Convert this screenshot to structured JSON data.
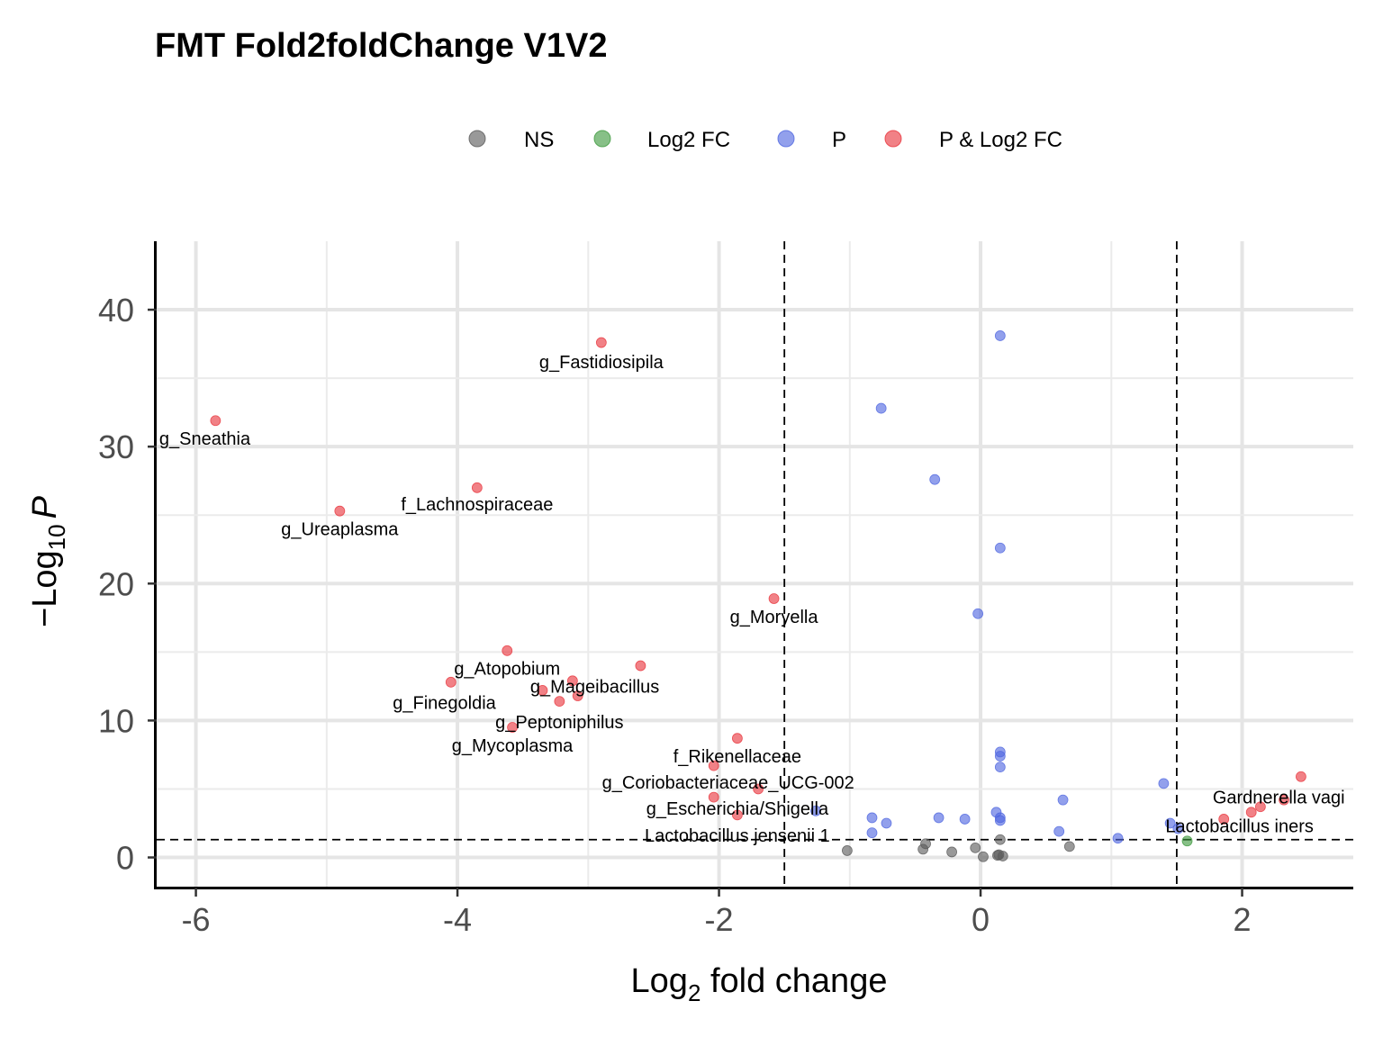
{
  "chart_data": {
    "type": "scatter",
    "title": "FMT Fold2foldChange V1V2",
    "xlabel_main": "Log",
    "xlabel_sub": "2",
    "xlabel_rest": " fold change",
    "ylabel_prefix": "−Log",
    "ylabel_sub": "10",
    "ylabel_var": "P",
    "xlim": [
      -6.3,
      2.85
    ],
    "ylim": [
      -2.2,
      45
    ],
    "x_ticks": [
      -6,
      -4,
      -2,
      0,
      2
    ],
    "x_tick_labels": [
      "-6",
      "-4",
      "-2",
      "0",
      "2"
    ],
    "y_ticks": [
      0,
      10,
      20,
      30,
      40
    ],
    "y_tick_labels": [
      "0",
      "10",
      "20",
      "30",
      "40"
    ],
    "grid": true,
    "fc_cutoff": 1.5,
    "p_cutoff": 1.3,
    "legend_position": "top",
    "legend": [
      {
        "key": "NS",
        "label": "NS",
        "color": "#5a5a5a"
      },
      {
        "key": "FC",
        "label": "Log2 FC",
        "color": "#3e9a3e"
      },
      {
        "key": "P",
        "label": "P",
        "color": "#4f66e0"
      },
      {
        "key": "PFC",
        "label": "P & Log2 FC",
        "color": "#e8343c"
      }
    ],
    "points": [
      {
        "x": -5.85,
        "y": 31.9,
        "cat": "PFC"
      },
      {
        "x": -2.9,
        "y": 37.6,
        "cat": "PFC"
      },
      {
        "x": -4.9,
        "y": 25.3,
        "cat": "PFC"
      },
      {
        "x": -3.85,
        "y": 27.0,
        "cat": "PFC"
      },
      {
        "x": -1.58,
        "y": 18.9,
        "cat": "PFC"
      },
      {
        "x": -3.62,
        "y": 15.1,
        "cat": "PFC"
      },
      {
        "x": -2.6,
        "y": 14.0,
        "cat": "PFC"
      },
      {
        "x": -4.05,
        "y": 12.8,
        "cat": "PFC"
      },
      {
        "x": -3.35,
        "y": 12.2,
        "cat": "PFC"
      },
      {
        "x": -3.12,
        "y": 12.9,
        "cat": "PFC"
      },
      {
        "x": -3.08,
        "y": 11.8,
        "cat": "PFC"
      },
      {
        "x": -3.22,
        "y": 11.4,
        "cat": "PFC"
      },
      {
        "x": -3.58,
        "y": 9.5,
        "cat": "PFC"
      },
      {
        "x": -1.86,
        "y": 8.7,
        "cat": "PFC"
      },
      {
        "x": -2.04,
        "y": 6.7,
        "cat": "PFC"
      },
      {
        "x": -1.7,
        "y": 5.0,
        "cat": "PFC"
      },
      {
        "x": -2.04,
        "y": 4.4,
        "cat": "PFC"
      },
      {
        "x": -1.86,
        "y": 3.1,
        "cat": "PFC"
      },
      {
        "x": 2.45,
        "y": 5.9,
        "cat": "PFC"
      },
      {
        "x": 2.32,
        "y": 4.2,
        "cat": "PFC"
      },
      {
        "x": 2.14,
        "y": 3.7,
        "cat": "PFC"
      },
      {
        "x": 2.07,
        "y": 3.3,
        "cat": "PFC"
      },
      {
        "x": 1.86,
        "y": 2.8,
        "cat": "PFC"
      },
      {
        "x": 0.15,
        "y": 38.1,
        "cat": "P"
      },
      {
        "x": -0.76,
        "y": 32.8,
        "cat": "P"
      },
      {
        "x": -0.35,
        "y": 27.6,
        "cat": "P"
      },
      {
        "x": 0.15,
        "y": 22.6,
        "cat": "P"
      },
      {
        "x": -0.02,
        "y": 17.8,
        "cat": "P"
      },
      {
        "x": 0.15,
        "y": 7.7,
        "cat": "P"
      },
      {
        "x": 0.15,
        "y": 7.4,
        "cat": "P"
      },
      {
        "x": 0.15,
        "y": 6.6,
        "cat": "P"
      },
      {
        "x": 1.4,
        "y": 5.4,
        "cat": "P"
      },
      {
        "x": 0.63,
        "y": 4.2,
        "cat": "P"
      },
      {
        "x": -1.26,
        "y": 3.4,
        "cat": "P"
      },
      {
        "x": 0.12,
        "y": 3.3,
        "cat": "P"
      },
      {
        "x": -0.32,
        "y": 2.9,
        "cat": "P"
      },
      {
        "x": -0.12,
        "y": 2.8,
        "cat": "P"
      },
      {
        "x": 0.15,
        "y": 2.9,
        "cat": "P"
      },
      {
        "x": 0.15,
        "y": 2.7,
        "cat": "P"
      },
      {
        "x": -0.83,
        "y": 2.9,
        "cat": "P"
      },
      {
        "x": -0.72,
        "y": 2.5,
        "cat": "P"
      },
      {
        "x": -0.83,
        "y": 1.8,
        "cat": "P"
      },
      {
        "x": 0.6,
        "y": 1.9,
        "cat": "P"
      },
      {
        "x": 1.05,
        "y": 1.4,
        "cat": "P"
      },
      {
        "x": 1.45,
        "y": 2.5,
        "cat": "P"
      },
      {
        "x": 1.51,
        "y": 2.1,
        "cat": "P"
      },
      {
        "x": 1.58,
        "y": 1.2,
        "cat": "FC"
      },
      {
        "x": 0.15,
        "y": 1.3,
        "cat": "NS"
      },
      {
        "x": 0.68,
        "y": 0.8,
        "cat": "NS"
      },
      {
        "x": -0.04,
        "y": 0.7,
        "cat": "NS"
      },
      {
        "x": -1.02,
        "y": 0.5,
        "cat": "NS"
      },
      {
        "x": -0.42,
        "y": 1.0,
        "cat": "NS"
      },
      {
        "x": -0.44,
        "y": 0.6,
        "cat": "NS"
      },
      {
        "x": -0.22,
        "y": 0.4,
        "cat": "NS"
      },
      {
        "x": 0.02,
        "y": 0.05,
        "cat": "NS"
      },
      {
        "x": 0.14,
        "y": 0.2,
        "cat": "NS"
      },
      {
        "x": 0.17,
        "y": 0.1,
        "cat": "NS"
      },
      {
        "x": 0.13,
        "y": 0.15,
        "cat": "NS"
      }
    ],
    "annotations": [
      {
        "text": "g_Fastidiosipila",
        "x": -2.9,
        "y": 36.2,
        "anchor": "middle"
      },
      {
        "text": "g_Sneathia",
        "x": -6.28,
        "y": 30.6,
        "anchor": "start"
      },
      {
        "text": "f_Lachnospiraceae",
        "x": -3.85,
        "y": 25.8,
        "anchor": "middle"
      },
      {
        "text": "g_Ureaplasma",
        "x": -4.9,
        "y": 24.0,
        "anchor": "middle"
      },
      {
        "text": "g_Moryella",
        "x": -1.58,
        "y": 17.6,
        "anchor": "middle"
      },
      {
        "text": "g_Atopobium",
        "x": -3.62,
        "y": 13.8,
        "anchor": "middle"
      },
      {
        "text": "g_Mageibacillus",
        "x": -2.95,
        "y": 12.5,
        "anchor": "middle"
      },
      {
        "text": "g_Finegoldia",
        "x": -4.1,
        "y": 11.3,
        "anchor": "middle"
      },
      {
        "text": "g_Peptoniphilus",
        "x": -3.22,
        "y": 9.9,
        "anchor": "middle"
      },
      {
        "text": "g_Mycoplasma",
        "x": -3.58,
        "y": 8.2,
        "anchor": "middle"
      },
      {
        "text": "f_Rikenellaceae",
        "x": -1.86,
        "y": 7.4,
        "anchor": "middle"
      },
      {
        "text": "g_Coriobacteriaceae_UCG-002",
        "x": -1.93,
        "y": 5.5,
        "anchor": "middle"
      },
      {
        "text": "g_Escherichia/Shigella",
        "x": -1.86,
        "y": 3.6,
        "anchor": "middle"
      },
      {
        "text": "Lactobacillus jensenii 1",
        "x": -1.86,
        "y": 1.6,
        "anchor": "middle"
      },
      {
        "text": "Gardnerella vagi",
        "x": 2.28,
        "y": 4.4,
        "anchor": "middle"
      },
      {
        "text": "Lactobacillus iners",
        "x": 1.98,
        "y": 2.3,
        "anchor": "middle"
      }
    ]
  }
}
